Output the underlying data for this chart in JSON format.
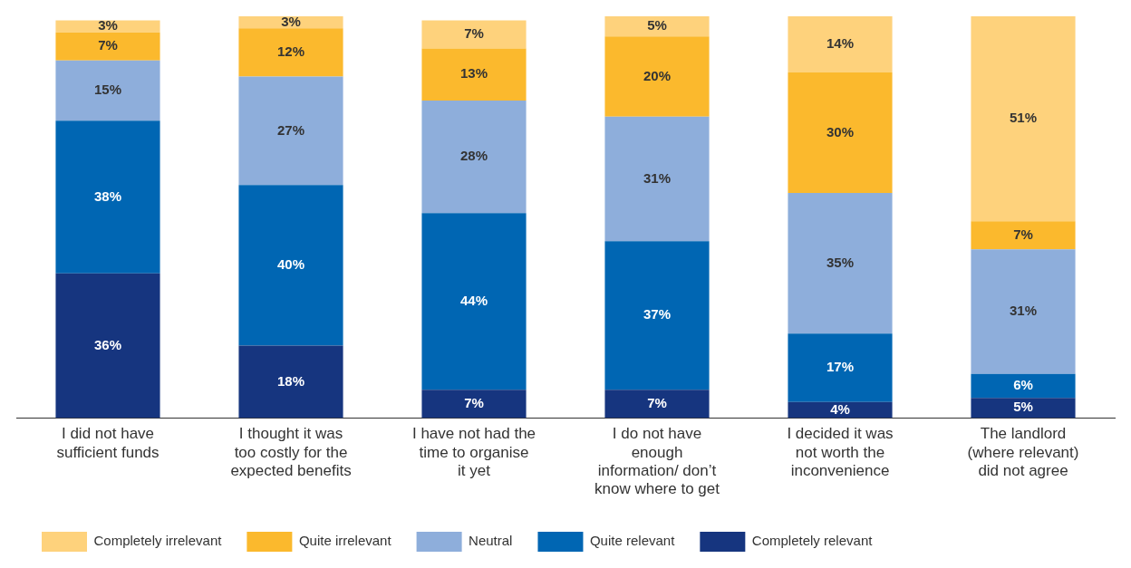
{
  "chart_data": {
    "type": "bar",
    "stacked": true,
    "legend": "bottom",
    "grid": false,
    "categories": [
      "I did not have sufficient funds",
      "I thought it was too costly for the expected benefits",
      "I have not had the time to organise it yet",
      "I do not have enough information/ don’t know where to get",
      "I decided it was not worth the inconvenience",
      "The landlord (where relevant) did not agree"
    ],
    "series": [
      {
        "name": "Completely relevant",
        "color": "#16357f",
        "values": [
          36,
          18,
          7,
          7,
          4,
          5
        ],
        "value_labels": [
          "36%",
          "18%",
          "7%",
          "7%",
          "4%",
          "5%"
        ]
      },
      {
        "name": "Quite relevant",
        "color": "#0066b3",
        "values": [
          38,
          40,
          44,
          37,
          17,
          6
        ],
        "value_labels": [
          "38%",
          "40%",
          "44%",
          "37%",
          "17%",
          "6%"
        ]
      },
      {
        "name": "Neutral",
        "color": "#8eaedb",
        "values": [
          15,
          27,
          28,
          31,
          35,
          31
        ],
        "value_labels": [
          "15%",
          "27%",
          "28%",
          "31%",
          "35%",
          "31%"
        ]
      },
      {
        "name": "Quite irrelevant",
        "color": "#fbb92d",
        "values": [
          7,
          12,
          13,
          20,
          30,
          7
        ],
        "value_labels": [
          "7%",
          "12%",
          "13%",
          "20%",
          "30%",
          "7%"
        ]
      },
      {
        "name": "Completely irrelevant",
        "color": "#fed27c",
        "values": [
          3,
          3,
          7,
          5,
          14,
          51
        ],
        "value_labels": [
          "3%",
          "3%",
          "7%",
          "5%",
          "14%",
          "51%"
        ]
      }
    ]
  }
}
